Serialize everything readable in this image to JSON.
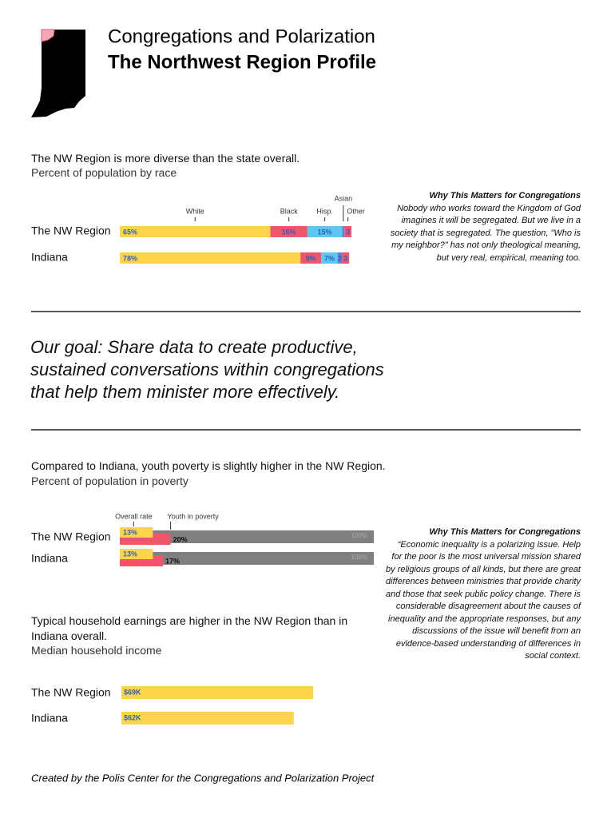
{
  "header": {
    "title": "Congregations and Polarization",
    "subtitle": "The Northwest Region Profile"
  },
  "chart_data": [
    {
      "type": "stacked_bar",
      "title": "The NW Region is more diverse than the state overall.",
      "subtitle": "Percent of population by race",
      "categories": [
        "The NW Region",
        "Indiana"
      ],
      "xlim": [
        0,
        100
      ],
      "series": [
        {
          "name": "White",
          "color": "#fdd54a",
          "values": [
            65,
            78
          ],
          "value_labels": [
            "65%",
            "78%"
          ]
        },
        {
          "name": "Black",
          "color": "#f0566b",
          "values": [
            16,
            9
          ],
          "value_labels": [
            "16%",
            "9%"
          ]
        },
        {
          "name": "Hisp.",
          "color": "#5bc8ef",
          "values": [
            15,
            7
          ],
          "value_labels": [
            "15%",
            "7%"
          ]
        },
        {
          "name": "Asian",
          "color": "#6a7fd8",
          "values": [
            1,
            2
          ],
          "value_labels": [
            null,
            "2"
          ]
        },
        {
          "name": "Other",
          "color": "#f0566b",
          "values": [
            3,
            3
          ],
          "value_labels": [
            "3",
            "3"
          ]
        }
      ]
    },
    {
      "type": "overlay_bar",
      "title": "Compared to Indiana, youth poverty is slightly higher in the NW Region.",
      "subtitle": "Percent of population in poverty",
      "categories": [
        "The NW Region",
        "Indiana"
      ],
      "xlim": [
        0,
        100
      ],
      "total": {
        "color": "#808080",
        "values": [
          100,
          100
        ],
        "value_labels": [
          "100%",
          "100%"
        ]
      },
      "series": [
        {
          "name": "Overall rate",
          "color": "#fdd54a",
          "values": [
            13,
            13
          ],
          "value_labels": [
            "13%",
            "13%"
          ]
        },
        {
          "name": "Youth in poverty",
          "color": "#f0566b",
          "values": [
            20,
            17
          ],
          "value_labels": [
            "20%",
            "17%"
          ]
        }
      ]
    },
    {
      "type": "bar",
      "title": "Typical household earnings are higher in the NW Region than in Indiana overall.",
      "subtitle": "Median household income",
      "categories": [
        "The NW Region",
        "Indiana"
      ],
      "xlim": [
        0,
        100000
      ],
      "color": "#fdd54a",
      "values": [
        69000,
        62000
      ],
      "value_labels": [
        "$69K",
        "$62K"
      ]
    }
  ],
  "sidebars": [
    {
      "title": "Why This Matters for Congregations",
      "text": "Nobody who works toward the Kingdom of God imagines it will be segregated. But we live in a society that is segregated. The question, \"Who is my neighbor?\" has not only theological meaning, but very real, empirical, meaning too."
    },
    {
      "title": "Why This Matters for Congregations",
      "text": "“Economic inequality is a polarizing issue.  Help for the poor is the most universal mission shared by religious groups of all kinds, but there are great differences between ministries that provide charity and those that seek public policy change.  There is considerable disagreement about the causes of inequality and the appropriate responses, but any discussions of the issue will benefit from an evidence-based understanding of differences in social context."
    }
  ],
  "quote": "Our goal: Share data to create productive, sustained conversations within congregations that help them minister more effectively.",
  "footer": "Created by the Polis Center for the Congregations and Polarization Project"
}
